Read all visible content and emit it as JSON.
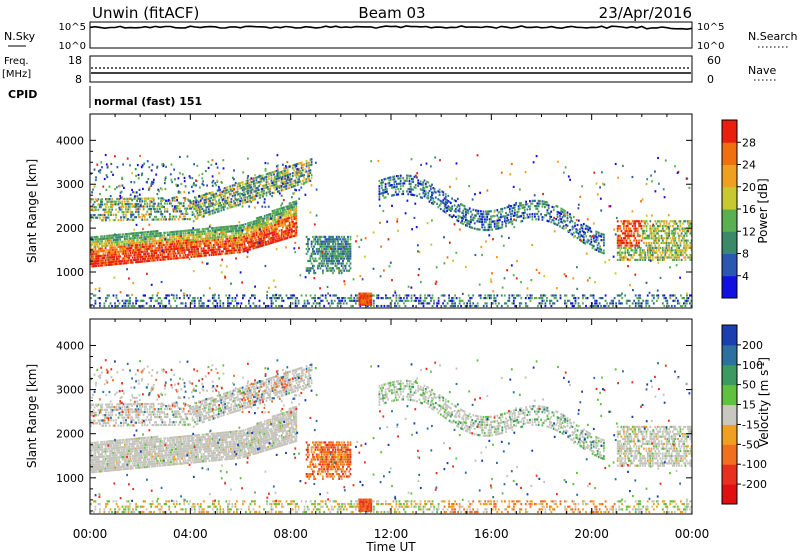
{
  "header": {
    "station": "Unwin (fitACF)",
    "beam": "Beam 03",
    "date": "23/Apr/2016"
  },
  "top_panels": {
    "nsky_label": "N.Sky",
    "nsky_ticks": [
      "10^5",
      "10^0"
    ],
    "nsearch_label": "N.Search",
    "nsearch_ticks": [
      "10^5",
      "10^0"
    ],
    "freq_label": "Freq.",
    "freq_unit": "[MHz]",
    "freq_ticks": [
      "18",
      "8"
    ],
    "nave_label": "Nave",
    "nave_ticks": [
      "60",
      "0"
    ],
    "cpid_label": "CPID",
    "cpid_value": "normal (fast) 151"
  },
  "chart_data": [
    {
      "type": "heatmap",
      "name": "power",
      "ylabel": "Slant Range [km]",
      "ylim": [
        180,
        4600
      ],
      "yticks": [
        "1000",
        "2000",
        "3000",
        "4000"
      ],
      "colorbar_label": "Power [dB]",
      "colorbar_ticks": [
        "4",
        "8",
        "12",
        "16",
        "20",
        "24",
        "28"
      ],
      "colorbar_colors": [
        "#1010e0",
        "#2a58b0",
        "#3a8a6a",
        "#5ab050",
        "#c8c830",
        "#f0a020",
        "#f07010",
        "#e82010"
      ]
    },
    {
      "type": "heatmap",
      "name": "velocity",
      "ylabel": "Slant Range [km]",
      "ylim": [
        180,
        4600
      ],
      "yticks": [
        "1000",
        "2000",
        "3000",
        "4000"
      ],
      "colorbar_label": "Velocity [m s^-1]",
      "colorbar_ticks": [
        "200",
        "100",
        "50",
        "15",
        "-15",
        "-50",
        "-100",
        "-200"
      ],
      "colorbar_colors": [
        "#1c3fb0",
        "#2c70a0",
        "#3c9a60",
        "#60c040",
        "#c8c8c0",
        "#f0a020",
        "#f07020",
        "#e83020",
        "#e01010"
      ]
    }
  ],
  "time_axis": {
    "xlabel": "Time UT",
    "ticks": [
      "00:00",
      "04:00",
      "08:00",
      "12:00",
      "16:00",
      "20:00",
      "00:00"
    ]
  }
}
